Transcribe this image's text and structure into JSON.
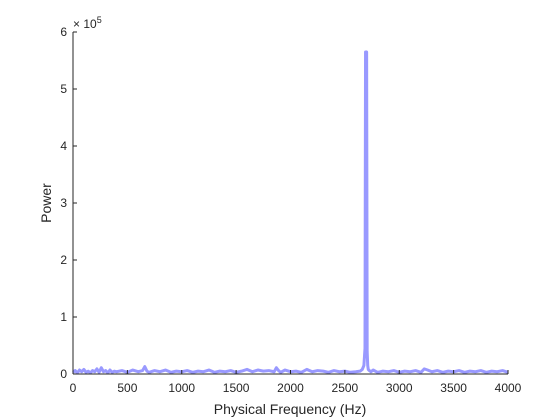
{
  "chart_data": {
    "type": "line",
    "title": "",
    "xlabel": "Physical Frequency (Hz)",
    "ylabel": "Power",
    "xlim": [
      0,
      4000
    ],
    "ylim": [
      0,
      600000
    ],
    "x_ticks": [
      "0",
      "500",
      "1000",
      "1500",
      "2000",
      "2500",
      "3000",
      "3500",
      "4000"
    ],
    "y_ticks": [
      "0",
      "1",
      "2",
      "3",
      "4",
      "5",
      "6"
    ],
    "y_exponent": {
      "base": "× 10",
      "power": "5"
    },
    "grid": false,
    "legend": "none",
    "series": [
      {
        "color": "#9999ff",
        "x": [
          0,
          20,
          40,
          60,
          80,
          100,
          120,
          140,
          160,
          180,
          200,
          220,
          240,
          260,
          280,
          300,
          320,
          340,
          360,
          380,
          400,
          450,
          500,
          550,
          600,
          640,
          660,
          680,
          700,
          750,
          800,
          850,
          900,
          950,
          1000,
          1050,
          1100,
          1150,
          1200,
          1250,
          1300,
          1350,
          1400,
          1450,
          1500,
          1550,
          1600,
          1650,
          1700,
          1750,
          1800,
          1850,
          1870,
          1890,
          1910,
          1950,
          2000,
          2050,
          2100,
          2150,
          2200,
          2250,
          2300,
          2350,
          2400,
          2450,
          2500,
          2550,
          2600,
          2640,
          2660,
          2675,
          2685,
          2690,
          2695,
          2700,
          2705,
          2710,
          2715,
          2725,
          2740,
          2760,
          2800,
          2850,
          2900,
          2950,
          3000,
          3050,
          3100,
          3150,
          3200,
          3230,
          3260,
          3300,
          3350,
          3400,
          3450,
          3500,
          3550,
          3600,
          3650,
          3700,
          3750,
          3800,
          3850,
          3900,
          3950,
          4000
        ],
        "y": [
          3000,
          6000,
          2000,
          7000,
          4000,
          8000,
          3000,
          5000,
          2000,
          6000,
          4000,
          9000,
          3000,
          11000,
          4000,
          6000,
          2000,
          7000,
          3000,
          5000,
          4000,
          6000,
          3000,
          7000,
          4000,
          6000,
          13000,
          5000,
          3000,
          6000,
          4000,
          7000,
          3000,
          5000,
          4000,
          6000,
          3000,
          5000,
          4000,
          7000,
          3000,
          5000,
          4000,
          6000,
          3000,
          5000,
          8000,
          4000,
          7000,
          5000,
          6000,
          4000,
          11000,
          6000,
          3000,
          7000,
          4000,
          5000,
          3000,
          8000,
          4000,
          6000,
          5000,
          3000,
          6000,
          4000,
          5000,
          3000,
          4000,
          5000,
          8000,
          15000,
          45000,
          565000,
          560000,
          565000,
          40000,
          15000,
          8000,
          6000,
          4000,
          7000,
          3000,
          5000,
          4000,
          6000,
          3000,
          5000,
          4000,
          6000,
          3000,
          9000,
          7000,
          4000,
          6000,
          3000,
          5000,
          4000,
          6000,
          3000,
          5000,
          4000,
          6000,
          3000,
          5000,
          4000,
          6000,
          3000
        ]
      }
    ]
  }
}
